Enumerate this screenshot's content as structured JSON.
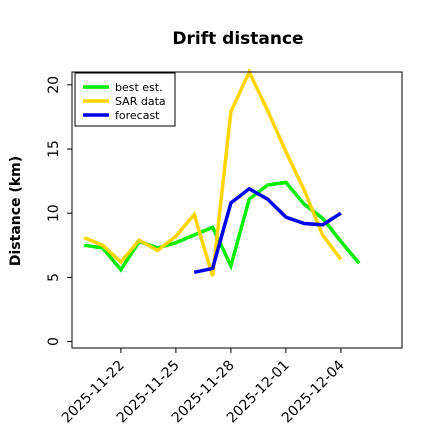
{
  "chart_data": {
    "type": "line",
    "title": "Drift distance",
    "xlabel": "",
    "ylabel": "Distance (km)",
    "ylim": [
      -0.5,
      21
    ],
    "xlim": [
      "2025-11-19T08:00",
      "2025-12-07T08:00"
    ],
    "y_ticks": [
      0,
      5,
      10,
      15,
      20
    ],
    "x_ticks": [
      "2025-11-22",
      "2025-11-25",
      "2025-11-28",
      "2025-12-01",
      "2025-12-04"
    ],
    "legend_placement": "upper-left",
    "grid": false,
    "series": [
      {
        "name": "best est.",
        "color": "#00ee00",
        "points": [
          [
            "2025-11-20T00:00",
            7.5
          ],
          [
            "2025-11-21T00:00",
            7.3
          ],
          [
            "2025-11-22T00:00",
            5.6
          ],
          [
            "2025-11-23T00:00",
            7.8
          ],
          [
            "2025-11-24T00:00",
            7.3
          ],
          [
            "2025-11-25T00:00",
            7.7
          ],
          [
            "2025-11-26T00:00",
            8.3
          ],
          [
            "2025-11-27T00:00",
            8.9
          ],
          [
            "2025-11-28T00:00",
            5.9
          ],
          [
            "2025-11-29T00:00",
            11.1
          ],
          [
            "2025-11-30T00:00",
            12.2
          ],
          [
            "2025-12-01T00:00",
            12.4
          ],
          [
            "2025-12-02T00:00",
            10.7
          ],
          [
            "2025-12-03T00:00",
            9.6
          ],
          [
            "2025-12-04T00:00",
            7.8
          ],
          [
            "2025-12-05T00:00",
            6.1
          ]
        ]
      },
      {
        "name": "SAR data",
        "color": "#ffd500",
        "points": [
          [
            "2025-11-20T00:00",
            8.1
          ],
          [
            "2025-11-21T00:00",
            7.5
          ],
          [
            "2025-11-22T00:00",
            6.2
          ],
          [
            "2025-11-23T00:00",
            7.9
          ],
          [
            "2025-11-24T00:00",
            7.1
          ],
          [
            "2025-11-25T00:00",
            8.2
          ],
          [
            "2025-11-26T00:00",
            9.9
          ],
          [
            "2025-11-27T00:00",
            5.1
          ],
          [
            "2025-11-28T00:00",
            17.9
          ],
          [
            "2025-11-29T00:00",
            21.0
          ],
          [
            "2025-11-30T00:00",
            18.0
          ],
          [
            "2025-12-01T00:00",
            14.8
          ],
          [
            "2025-12-02T00:00",
            11.8
          ],
          [
            "2025-12-03T00:00",
            8.3
          ],
          [
            "2025-12-04T00:00",
            6.4
          ]
        ]
      },
      {
        "name": "forecast",
        "color": "#0000ee",
        "points": [
          [
            "2025-11-26T00:00",
            5.4
          ],
          [
            "2025-11-27T00:00",
            5.7
          ],
          [
            "2025-11-28T00:00",
            10.8
          ],
          [
            "2025-11-29T00:00",
            11.9
          ],
          [
            "2025-11-30T00:00",
            11.1
          ],
          [
            "2025-12-01T00:00",
            9.7
          ],
          [
            "2025-12-02T00:00",
            9.2
          ],
          [
            "2025-12-03T00:00",
            9.1
          ],
          [
            "2025-12-04T00:00",
            10.0
          ]
        ]
      }
    ]
  }
}
